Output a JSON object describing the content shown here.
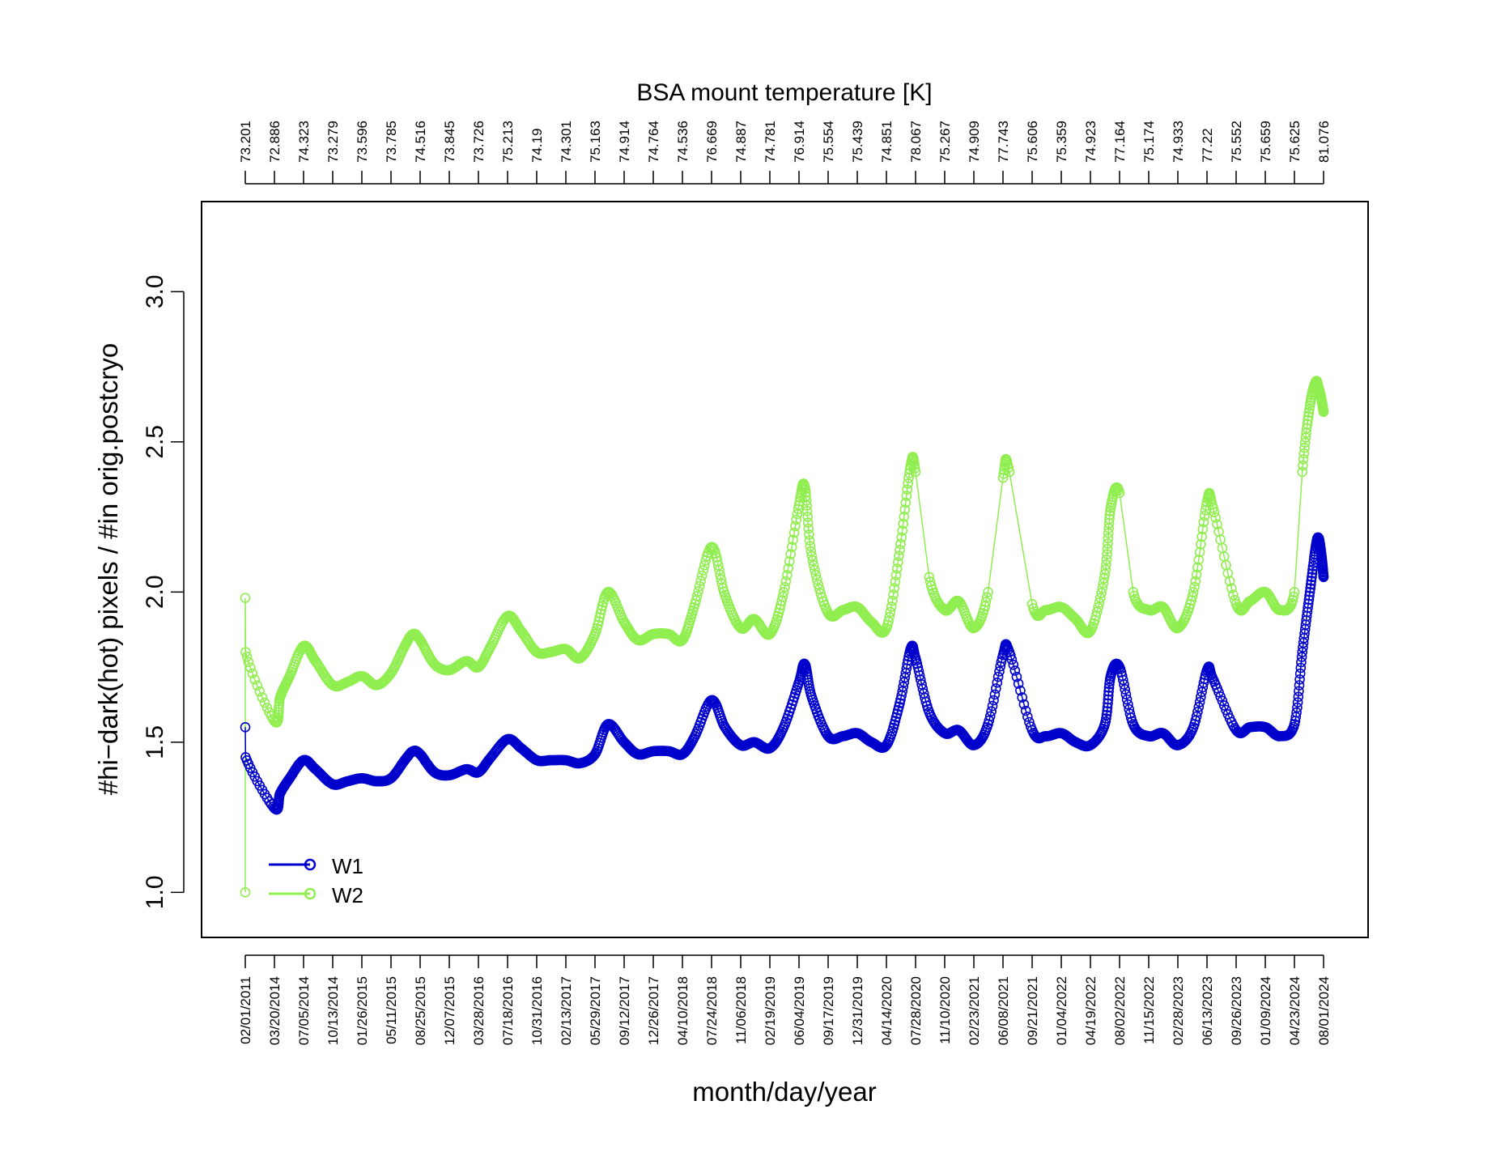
{
  "chart_data": {
    "type": "line",
    "top_axis_title": "BSA mount temperature [K]",
    "xlabel": "month/day/year",
    "ylabel": "#hi−dark(hot) pixels / #in orig.postcryo",
    "ylim": [
      0.85,
      3.3
    ],
    "yticks": [
      "1.0",
      "1.5",
      "2.0",
      "2.5",
      "3.0"
    ],
    "grid": false,
    "legend_position": "bottom-left",
    "x_tick_labels": [
      "02/01/2011",
      "03/20/2014",
      "07/05/2014",
      "10/13/2014",
      "01/26/2015",
      "05/11/2015",
      "08/25/2015",
      "12/07/2015",
      "03/28/2016",
      "07/18/2016",
      "10/31/2016",
      "02/13/2017",
      "05/29/2017",
      "09/12/2017",
      "12/26/2017",
      "04/10/2018",
      "07/24/2018",
      "11/06/2018",
      "02/19/2019",
      "06/04/2019",
      "09/17/2019",
      "12/31/2019",
      "04/14/2020",
      "07/28/2020",
      "11/10/2020",
      "02/23/2021",
      "06/08/2021",
      "09/21/2021",
      "01/04/2022",
      "04/19/2022",
      "08/02/2022",
      "11/15/2022",
      "02/28/2023",
      "06/13/2023",
      "09/26/2023",
      "01/09/2024",
      "04/23/2024",
      "08/01/2024"
    ],
    "top_tick_labels": [
      "73.201",
      "72.886",
      "74.323",
      "73.279",
      "73.596",
      "73.785",
      "74.516",
      "73.845",
      "73.726",
      "75.213",
      "74.19",
      "74.301",
      "75.163",
      "74.914",
      "74.764",
      "74.536",
      "76.669",
      "74.887",
      "74.781",
      "76.914",
      "75.554",
      "75.439",
      "74.851",
      "78.067",
      "75.267",
      "74.909",
      "77.743",
      "75.606",
      "75.359",
      "74.923",
      "77.164",
      "75.174",
      "74.933",
      "77.22",
      "75.552",
      "75.659",
      "75.625",
      "81.076"
    ],
    "series": [
      {
        "name": "W1",
        "color": "#0000cc",
        "x": [
          "02/01/2011",
          "02/15/2011",
          "03/20/2014",
          "04/10/2014",
          "05/15/2014",
          "07/05/2014",
          "08/15/2014",
          "10/13/2014",
          "12/05/2014",
          "01/26/2015",
          "03/20/2015",
          "05/11/2015",
          "06/30/2015",
          "07/30/2015",
          "08/25/2015",
          "10/15/2015",
          "12/07/2015",
          "02/10/2016",
          "03/28/2016",
          "05/15/2016",
          "07/18/2016",
          "09/05/2016",
          "10/31/2016",
          "12/20/2016",
          "02/13/2017",
          "04/05/2017",
          "05/29/2017",
          "07/15/2017",
          "09/12/2017",
          "11/01/2017",
          "12/26/2017",
          "02/20/2018",
          "04/10/2018",
          "05/25/2018",
          "07/24/2018",
          "09/10/2018",
          "11/06/2018",
          "12/25/2018",
          "02/19/2019",
          "04/10/2019",
          "06/04/2019",
          "06/25/2019",
          "07/20/2019",
          "09/17/2019",
          "11/10/2019",
          "12/31/2019",
          "02/20/2020",
          "04/14/2020",
          "06/01/2020",
          "07/10/2020",
          "07/28/2020",
          "09/15/2020",
          "11/10/2020",
          "12/30/2020",
          "02/23/2021",
          "04/15/2021",
          "06/08/2021",
          "07/01/2021",
          "09/21/2021",
          "11/10/2021",
          "01/04/2022",
          "02/25/2022",
          "04/19/2022",
          "06/10/2022",
          "07/01/2022",
          "08/02/2022",
          "09/20/2022",
          "11/15/2022",
          "01/05/2023",
          "02/28/2023",
          "04/25/2023",
          "06/13/2023",
          "07/05/2023",
          "09/26/2023",
          "11/15/2023",
          "01/09/2024",
          "03/01/2024",
          "04/23/2024",
          "05/20/2024",
          "06/15/2024",
          "07/05/2024",
          "07/15/2024",
          "07/25/2024",
          "08/01/2024"
        ],
        "values": [
          1.55,
          1.45,
          1.28,
          1.33,
          1.38,
          1.44,
          1.41,
          1.36,
          1.37,
          1.38,
          1.37,
          1.38,
          1.44,
          1.47,
          1.46,
          1.4,
          1.39,
          1.41,
          1.4,
          1.45,
          1.51,
          1.48,
          1.44,
          1.44,
          1.44,
          1.43,
          1.46,
          1.56,
          1.5,
          1.46,
          1.47,
          1.47,
          1.46,
          1.52,
          1.64,
          1.55,
          1.49,
          1.5,
          1.48,
          1.55,
          1.7,
          1.76,
          1.65,
          1.52,
          1.52,
          1.53,
          1.5,
          1.49,
          1.63,
          1.81,
          1.78,
          1.6,
          1.53,
          1.54,
          1.49,
          1.56,
          1.79,
          1.8,
          1.54,
          1.52,
          1.53,
          1.5,
          1.49,
          1.56,
          1.72,
          1.75,
          1.56,
          1.52,
          1.53,
          1.49,
          1.55,
          1.74,
          1.71,
          1.54,
          1.55,
          1.55,
          1.52,
          1.56,
          1.8,
          2.0,
          2.15,
          2.18,
          2.12,
          2.05
        ]
      },
      {
        "name": "W2",
        "color": "#90ee50",
        "x": [
          "02/01/2011",
          "02/01/2011",
          "02/15/2011",
          "03/20/2014",
          "04/10/2014",
          "05/15/2014",
          "07/05/2014",
          "08/15/2014",
          "10/13/2014",
          "12/05/2014",
          "01/26/2015",
          "03/20/2015",
          "05/11/2015",
          "06/30/2015",
          "07/30/2015",
          "08/25/2015",
          "10/15/2015",
          "12/07/2015",
          "02/10/2016",
          "03/28/2016",
          "05/15/2016",
          "07/18/2016",
          "09/05/2016",
          "10/31/2016",
          "12/20/2016",
          "02/13/2017",
          "04/05/2017",
          "05/29/2017",
          "07/15/2017",
          "09/12/2017",
          "11/01/2017",
          "12/26/2017",
          "02/20/2018",
          "04/10/2018",
          "05/25/2018",
          "07/24/2018",
          "09/10/2018",
          "11/06/2018",
          "12/25/2018",
          "02/19/2019",
          "04/10/2019",
          "06/04/2019",
          "06/25/2019",
          "07/20/2019",
          "09/17/2019",
          "11/10/2019",
          "12/31/2019",
          "02/20/2020",
          "04/14/2020",
          "06/01/2020",
          "07/10/2020",
          "07/28/2020",
          "09/15/2020",
          "11/10/2020",
          "12/30/2020",
          "02/23/2021",
          "04/15/2021",
          "06/08/2021",
          "07/01/2021",
          "09/21/2021",
          "11/10/2021",
          "01/04/2022",
          "02/25/2022",
          "04/19/2022",
          "06/10/2022",
          "07/01/2022",
          "08/02/2022",
          "09/20/2022",
          "11/15/2022",
          "01/05/2023",
          "02/28/2023",
          "04/25/2023",
          "06/13/2023",
          "07/05/2023",
          "09/26/2023",
          "11/15/2023",
          "01/09/2024",
          "03/01/2024",
          "04/23/2024",
          "05/20/2024",
          "06/15/2024",
          "07/05/2024",
          "07/15/2024",
          "07/25/2024",
          "08/01/2024"
        ],
        "values": [
          1.0,
          1.98,
          1.8,
          1.57,
          1.65,
          1.72,
          1.82,
          1.77,
          1.69,
          1.7,
          1.72,
          1.69,
          1.73,
          1.82,
          1.86,
          1.84,
          1.76,
          1.74,
          1.77,
          1.75,
          1.82,
          1.92,
          1.87,
          1.8,
          1.8,
          1.81,
          1.78,
          1.86,
          2.0,
          1.9,
          1.84,
          1.86,
          1.86,
          1.84,
          1.96,
          2.15,
          1.99,
          1.88,
          1.91,
          1.86,
          2.0,
          2.29,
          2.35,
          2.12,
          1.93,
          1.94,
          1.95,
          1.9,
          1.88,
          2.14,
          2.42,
          2.4,
          2.05,
          1.94,
          1.97,
          1.88,
          2.0,
          2.38,
          2.4,
          1.96,
          1.94,
          1.95,
          1.91,
          1.87,
          2.06,
          2.28,
          2.33,
          2.0,
          1.94,
          1.95,
          1.88,
          2.0,
          2.3,
          2.28,
          1.96,
          1.97,
          2.0,
          1.94,
          2.0,
          2.4,
          2.62,
          2.7,
          2.68,
          2.64,
          2.6
        ]
      }
    ]
  }
}
